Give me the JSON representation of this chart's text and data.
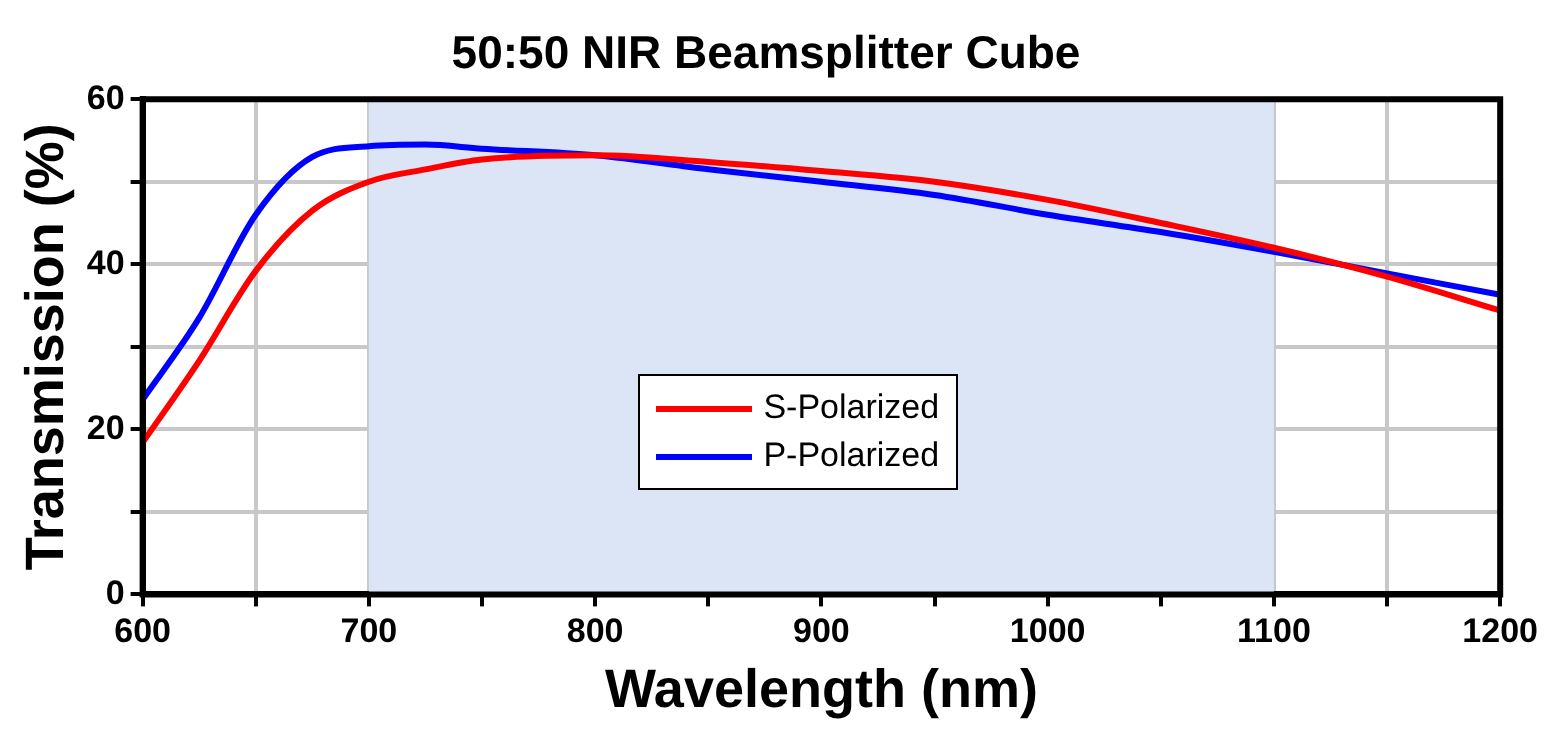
{
  "chart_data": {
    "type": "line",
    "title": "50:50 NIR Beamsplitter Cube",
    "xlabel": "Wavelength (nm)",
    "ylabel": "Transmission (%)",
    "x": [
      600,
      625,
      650,
      675,
      700,
      725,
      750,
      800,
      850,
      900,
      950,
      1000,
      1050,
      1100,
      1150,
      1200
    ],
    "series": [
      {
        "name": "S-Polarized",
        "color": "#ff0000",
        "values": [
          18.4,
          28.3,
          39.2,
          46.5,
          50,
          51.5,
          52.7,
          53.2,
          52.4,
          51.3,
          50,
          47.8,
          45,
          42,
          38.5,
          34.4
        ]
      },
      {
        "name": "P-Polarized",
        "color": "#0000ff",
        "values": [
          23.6,
          33.5,
          46,
          53,
          54.3,
          54.5,
          54,
          53.2,
          51.5,
          50,
          48.4,
          46,
          43.9,
          41.5,
          38.9,
          36.3
        ]
      }
    ],
    "xlim": [
      600,
      1200
    ],
    "xticks": [
      600,
      {
        "value": 650,
        "label": null
      },
      700,
      {
        "value": 750,
        "label": null
      },
      800,
      {
        "value": 850,
        "label": null
      },
      900,
      {
        "value": 950,
        "label": null
      },
      1000,
      {
        "value": 1050,
        "label": null
      },
      1100,
      {
        "value": 1150,
        "label": null
      },
      1200
    ],
    "ylim": [
      0,
      60
    ],
    "yticks": [
      0,
      {
        "value": 10,
        "label": null
      },
      20,
      {
        "value": 30,
        "label": null
      },
      40,
      {
        "value": 50,
        "label": null
      },
      60
    ],
    "bands": [
      {
        "axis": "x",
        "from": 700,
        "to": 1100,
        "color": "#dce5f5"
      }
    ],
    "grid": true,
    "legend": "bottom",
    "marker": "none",
    "line_style": "solid"
  }
}
